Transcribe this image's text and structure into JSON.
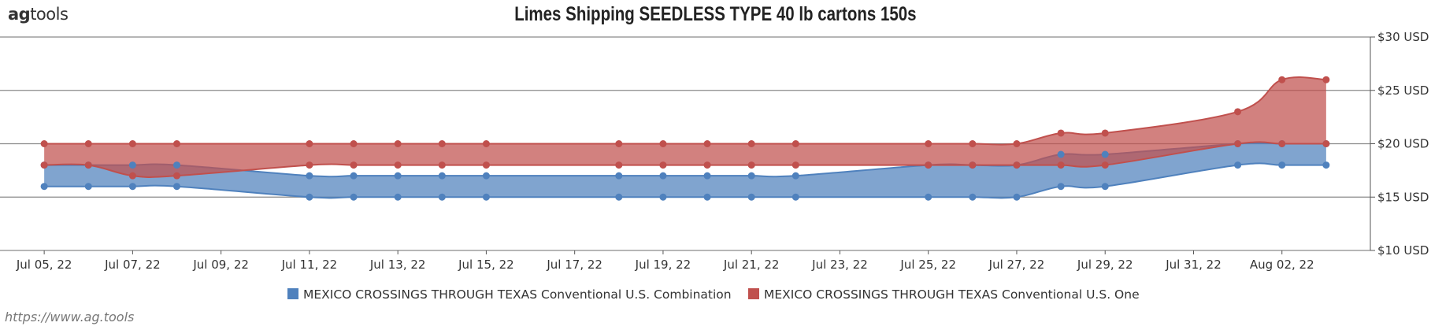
{
  "logo": {
    "prefix": "ag",
    "suffix": "tools"
  },
  "source_url": "https://www.ag.tools",
  "colors": {
    "blue": "#4f81bd",
    "red": "#c0504d"
  },
  "chart_data": {
    "type": "area",
    "title": "Limes Shipping SEEDLESS TYPE 40 lb cartons 150s",
    "xlabel": "",
    "ylabel": "",
    "x_ticks": [
      "Jul 05, 22",
      "Jul 07, 22",
      "Jul 09, 22",
      "Jul 11, 22",
      "Jul 13, 22",
      "Jul 15, 22",
      "Jul 17, 22",
      "Jul 19, 22",
      "Jul 21, 22",
      "Jul 23, 22",
      "Jul 25, 22",
      "Jul 27, 22",
      "Jul 29, 22",
      "Jul 31, 22",
      "Aug 02, 22"
    ],
    "y_ticks": [
      "$10 USD",
      "$15 USD",
      "$20 USD",
      "$25 USD",
      "$30 USD"
    ],
    "ylim": [
      10,
      30
    ],
    "xlim": [
      "2022-07-04",
      "2022-08-04"
    ],
    "y_axis_position": "right",
    "grid": true,
    "legend_position": "bottom",
    "series": [
      {
        "name": "MEXICO CROSSINGS THROUGH TEXAS",
        "subname": "Conventional U.S. Combination",
        "color": "#4f81bd",
        "points": [
          {
            "x": "2022-07-05",
            "low": 16,
            "high": 18
          },
          {
            "x": "2022-07-06",
            "low": 16,
            "high": 18
          },
          {
            "x": "2022-07-07",
            "low": 16,
            "high": 18
          },
          {
            "x": "2022-07-08",
            "low": 16,
            "high": 18
          },
          {
            "x": "2022-07-11",
            "low": 15,
            "high": 17
          },
          {
            "x": "2022-07-12",
            "low": 15,
            "high": 17
          },
          {
            "x": "2022-07-13",
            "low": 15,
            "high": 17
          },
          {
            "x": "2022-07-14",
            "low": 15,
            "high": 17
          },
          {
            "x": "2022-07-15",
            "low": 15,
            "high": 17
          },
          {
            "x": "2022-07-18",
            "low": 15,
            "high": 17
          },
          {
            "x": "2022-07-19",
            "low": 15,
            "high": 17
          },
          {
            "x": "2022-07-20",
            "low": 15,
            "high": 17
          },
          {
            "x": "2022-07-21",
            "low": 15,
            "high": 17
          },
          {
            "x": "2022-07-22",
            "low": 15,
            "high": 17
          },
          {
            "x": "2022-07-25",
            "low": 15,
            "high": 18
          },
          {
            "x": "2022-07-26",
            "low": 15,
            "high": 18
          },
          {
            "x": "2022-07-27",
            "low": 15,
            "high": 18
          },
          {
            "x": "2022-07-28",
            "low": 16,
            "high": 19
          },
          {
            "x": "2022-07-29",
            "low": 16,
            "high": 19
          },
          {
            "x": "2022-08-01",
            "low": 18,
            "high": 20
          },
          {
            "x": "2022-08-02",
            "low": 18,
            "high": 20
          },
          {
            "x": "2022-08-03",
            "low": 18,
            "high": 20
          }
        ]
      },
      {
        "name": "MEXICO CROSSINGS THROUGH TEXAS",
        "subname": "Conventional U.S. One",
        "color": "#c0504d",
        "points": [
          {
            "x": "2022-07-05",
            "low": 18,
            "high": 20
          },
          {
            "x": "2022-07-06",
            "low": 18,
            "high": 20
          },
          {
            "x": "2022-07-07",
            "low": 17,
            "high": 20
          },
          {
            "x": "2022-07-08",
            "low": 17,
            "high": 20
          },
          {
            "x": "2022-07-11",
            "low": 18,
            "high": 20
          },
          {
            "x": "2022-07-12",
            "low": 18,
            "high": 20
          },
          {
            "x": "2022-07-13",
            "low": 18,
            "high": 20
          },
          {
            "x": "2022-07-14",
            "low": 18,
            "high": 20
          },
          {
            "x": "2022-07-15",
            "low": 18,
            "high": 20
          },
          {
            "x": "2022-07-18",
            "low": 18,
            "high": 20
          },
          {
            "x": "2022-07-19",
            "low": 18,
            "high": 20
          },
          {
            "x": "2022-07-20",
            "low": 18,
            "high": 20
          },
          {
            "x": "2022-07-21",
            "low": 18,
            "high": 20
          },
          {
            "x": "2022-07-22",
            "low": 18,
            "high": 20
          },
          {
            "x": "2022-07-25",
            "low": 18,
            "high": 20
          },
          {
            "x": "2022-07-26",
            "low": 18,
            "high": 20
          },
          {
            "x": "2022-07-27",
            "low": 18,
            "high": 20
          },
          {
            "x": "2022-07-28",
            "low": 18,
            "high": 21
          },
          {
            "x": "2022-07-29",
            "low": 18,
            "high": 21
          },
          {
            "x": "2022-08-01",
            "low": 20,
            "high": 23
          },
          {
            "x": "2022-08-02",
            "low": 20,
            "high": 26
          },
          {
            "x": "2022-08-03",
            "low": 20,
            "high": 26
          }
        ]
      }
    ]
  }
}
